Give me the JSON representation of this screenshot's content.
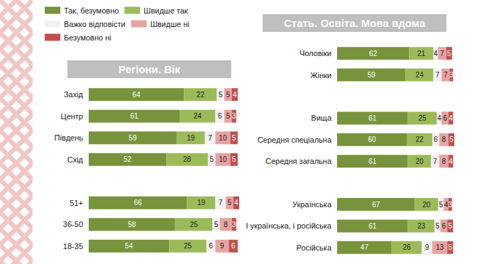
{
  "chart_data": [
    {
      "type": "bar",
      "title": "Регіони. Вік",
      "orientation": "horizontal",
      "stacked": true,
      "data_labels": true,
      "tick_labels": "y",
      "grid": false,
      "legend": "top-left",
      "xlim": [
        0,
        101
      ],
      "categories": [
        "Захід",
        "Центр",
        "Південь",
        "Схід",
        null,
        "51+",
        "36-50",
        "18-35"
      ],
      "series": [
        {
          "name": "Так, безумовно",
          "color": "#77933c",
          "values": [
            64,
            61,
            59,
            52,
            null,
            66,
            58,
            54
          ]
        },
        {
          "name": "Швидше так",
          "color": "#9bbb59",
          "values": [
            22,
            24,
            19,
            28,
            null,
            19,
            25,
            25
          ]
        },
        {
          "name": "Важко відповісти",
          "color": "#f2f2f2",
          "values": [
            5,
            6,
            7,
            5,
            null,
            7,
            5,
            6
          ]
        },
        {
          "name": "Швидше ні",
          "color": "#e6a3a1",
          "values": [
            5,
            5,
            10,
            10,
            null,
            5,
            8,
            9
          ]
        },
        {
          "name": "Безумовно ні",
          "color": "#c0504d",
          "values": [
            4,
            3,
            5,
            5,
            null,
            4,
            3,
            6
          ]
        }
      ]
    },
    {
      "type": "bar",
      "title": "Стать. Освіта. Мова вдома",
      "orientation": "horizontal",
      "stacked": true,
      "data_labels": true,
      "tick_labels": "y",
      "grid": false,
      "xlim": [
        0,
        101
      ],
      "categories": [
        "Чоловіки",
        "Жінки",
        null,
        "Вища",
        "Середня спеціальна",
        "Середня загальна",
        null,
        "Українська",
        "І українська, і російська",
        "Російська"
      ],
      "series": [
        {
          "name": "Так, безумовно",
          "color": "#77933c",
          "values": [
            62,
            59,
            null,
            61,
            60,
            61,
            null,
            67,
            61,
            47
          ]
        },
        {
          "name": "Швидше так",
          "color": "#9bbb59",
          "values": [
            21,
            24,
            null,
            25,
            22,
            20,
            null,
            20,
            23,
            26
          ]
        },
        {
          "name": "Важко відповісти",
          "color": "#f2f2f2",
          "values": [
            4,
            7,
            null,
            4,
            6,
            7,
            null,
            5,
            5,
            9
          ]
        },
        {
          "name": "Швидше ні",
          "color": "#e6a3a1",
          "values": [
            7,
            7,
            null,
            6,
            8,
            8,
            null,
            4,
            6,
            13
          ]
        },
        {
          "name": "Безумовно ні",
          "color": "#c0504d",
          "values": [
            5,
            3,
            null,
            4,
            5,
            4,
            null,
            3,
            5,
            5
          ]
        }
      ]
    }
  ]
}
